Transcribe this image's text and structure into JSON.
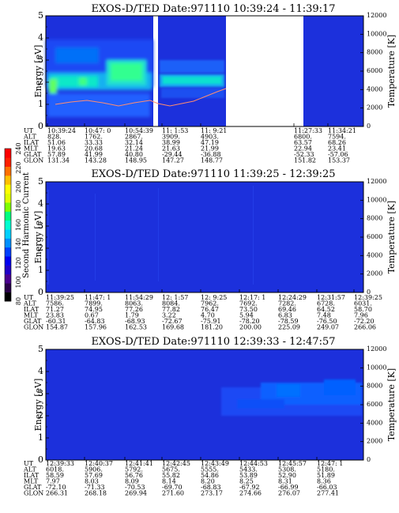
{
  "figure": {
    "colorbar": {
      "label": "Second Harmonic Current",
      "ticks": [
        "80",
        "100",
        "120",
        "140",
        "160",
        "180",
        "200",
        "220",
        "240"
      ],
      "colors": [
        "#000000",
        "#2a004a",
        "#4a0090",
        "#2000c8",
        "#0000f0",
        "#0040ff",
        "#0090ff",
        "#00d0ff",
        "#00ffd0",
        "#00ff80",
        "#80ff00",
        "#e0ff00",
        "#ffff00",
        "#ffc000",
        "#ff7000",
        "#ff2000",
        "#ff0000"
      ]
    }
  },
  "chart_data": [
    {
      "type": "heatmap",
      "title": "EXOS-D/TED   Date:971110   10:39:24 - 11:39:17",
      "ylabel": "Energy [eV]",
      "ylabel_right": "Temperature [K]",
      "ylim": [
        0,
        5
      ],
      "ylim_right": [
        0,
        12000
      ],
      "yticks": [
        "0",
        "1",
        "2",
        "3",
        "4",
        "5"
      ],
      "yticks_right": [
        "0",
        "2000",
        "4000",
        "6000",
        "8000",
        "10000",
        "12000"
      ],
      "orbit_labels": [
        "UT",
        "ALT",
        "ILAT",
        "MLT",
        "GLAT",
        "GLON"
      ],
      "orbit_columns": [
        [
          "10:39:24",
          "828.",
          "51.06",
          "19.63",
          "57.89",
          "131.34"
        ],
        [
          "10:47: 0",
          "1762.",
          "33.33",
          "20.68",
          "41.99",
          "143.28"
        ],
        [
          "10:54:39",
          "2867.",
          "32.14",
          "21.24",
          "40.80",
          "148.95"
        ],
        [
          "11: 1:53",
          "3909.",
          "38.99",
          "21.63",
          "-29.44",
          "147.27"
        ],
        [
          "11: 9:21",
          "4903.",
          "47.19",
          "21.99",
          "-36.88",
          "148.77"
        ],
        [
          "11:27:33",
          "6800.",
          "63.57",
          "22.94",
          "-52.33",
          "151.82"
        ],
        [
          "11:34:21",
          "7594.",
          "68.26",
          "23.41",
          "-57.06",
          "153.37"
        ]
      ]
    },
    {
      "type": "heatmap",
      "title": "EXOS-D/TED   Date:971110   11:39:25 - 12:39:25",
      "ylabel": "Energy [eV]",
      "ylabel_right": "Temperature [K]",
      "ylim": [
        0,
        5
      ],
      "ylim_right": [
        0,
        12000
      ],
      "yticks": [
        "0",
        "1",
        "2",
        "3",
        "4",
        "5"
      ],
      "yticks_right": [
        "0",
        "2000",
        "4000",
        "6000",
        "8000",
        "10000",
        "12000"
      ],
      "orbit_labels": [
        "UT",
        "ALT",
        "ILAT",
        "MLT",
        "GLAT",
        "GLON"
      ],
      "orbit_columns": [
        [
          "11:39:25",
          "7586.",
          "71.27",
          "23.83",
          "-60.31",
          "154.87"
        ],
        [
          "11:47: 1",
          "7899.",
          "74.95",
          "0.67",
          "-64.83",
          "157.96"
        ],
        [
          "11:54:29",
          "8063.",
          "77.26",
          "1.79",
          "-68.93",
          "162.53"
        ],
        [
          "12: 1:57",
          "8084.",
          "77.82",
          "3.22",
          "-72.67",
          "169.68"
        ],
        [
          "12: 9:25",
          "7962.",
          "76.47",
          "4.70",
          "-75.91",
          "181.20"
        ],
        [
          "12:17: 1",
          "7692.",
          "73.50",
          "5.94",
          "-78.20",
          "200.00"
        ],
        [
          "12:24:29",
          "7282.",
          "69.46",
          "6.83",
          "-78.59",
          "225.09"
        ],
        [
          "12:31:57",
          "6728.",
          "64.52",
          "7.48",
          "-76.50",
          "249.07"
        ],
        [
          "12:39:25",
          "6031.",
          "58.70",
          "7.96",
          "-72.20",
          "266.06"
        ]
      ]
    },
    {
      "type": "heatmap",
      "title": "EXOS-D/TED   Date:971110   12:39:33 - 12:47:57",
      "ylabel": "Energy [eV]",
      "ylabel_right": "Temperature [K]",
      "ylim": [
        0,
        5
      ],
      "ylim_right": [
        0,
        12000
      ],
      "yticks": [
        "0",
        "1",
        "2",
        "3",
        "4",
        "5"
      ],
      "yticks_right": [
        "0",
        "2000",
        "4000",
        "6000",
        "8000",
        "10000",
        "12000"
      ],
      "orbit_labels": [
        "UT",
        "ALT",
        "ILAT",
        "MLT",
        "GLAT",
        "GLON"
      ],
      "orbit_columns": [
        [
          "12:39:33",
          "6018.",
          "58.59",
          "7.97",
          "-72.10",
          "266.31"
        ],
        [
          "12:40:37",
          "5906.",
          "57.69",
          "8.03",
          "-71.33",
          "268.18"
        ],
        [
          "12:41:41",
          "5792.",
          "56.76",
          "8.09",
          "-70.53",
          "269.94"
        ],
        [
          "12:42:45",
          "5675.",
          "55.82",
          "8.14",
          "-69.70",
          "271.60"
        ],
        [
          "12:43:49",
          "5555.",
          "54.86",
          "8.20",
          "-68.83",
          "273.17"
        ],
        [
          "12:44:53",
          "5433.",
          "53.89",
          "8.25",
          "-67.92",
          "274.66"
        ],
        [
          "12:45:57",
          "5308.",
          "52.90",
          "8.31",
          "-66.99",
          "276.07"
        ],
        [
          "12:47: 1",
          "5180.",
          "51.89",
          "8.36",
          "-66.03",
          "277.41"
        ]
      ]
    }
  ]
}
